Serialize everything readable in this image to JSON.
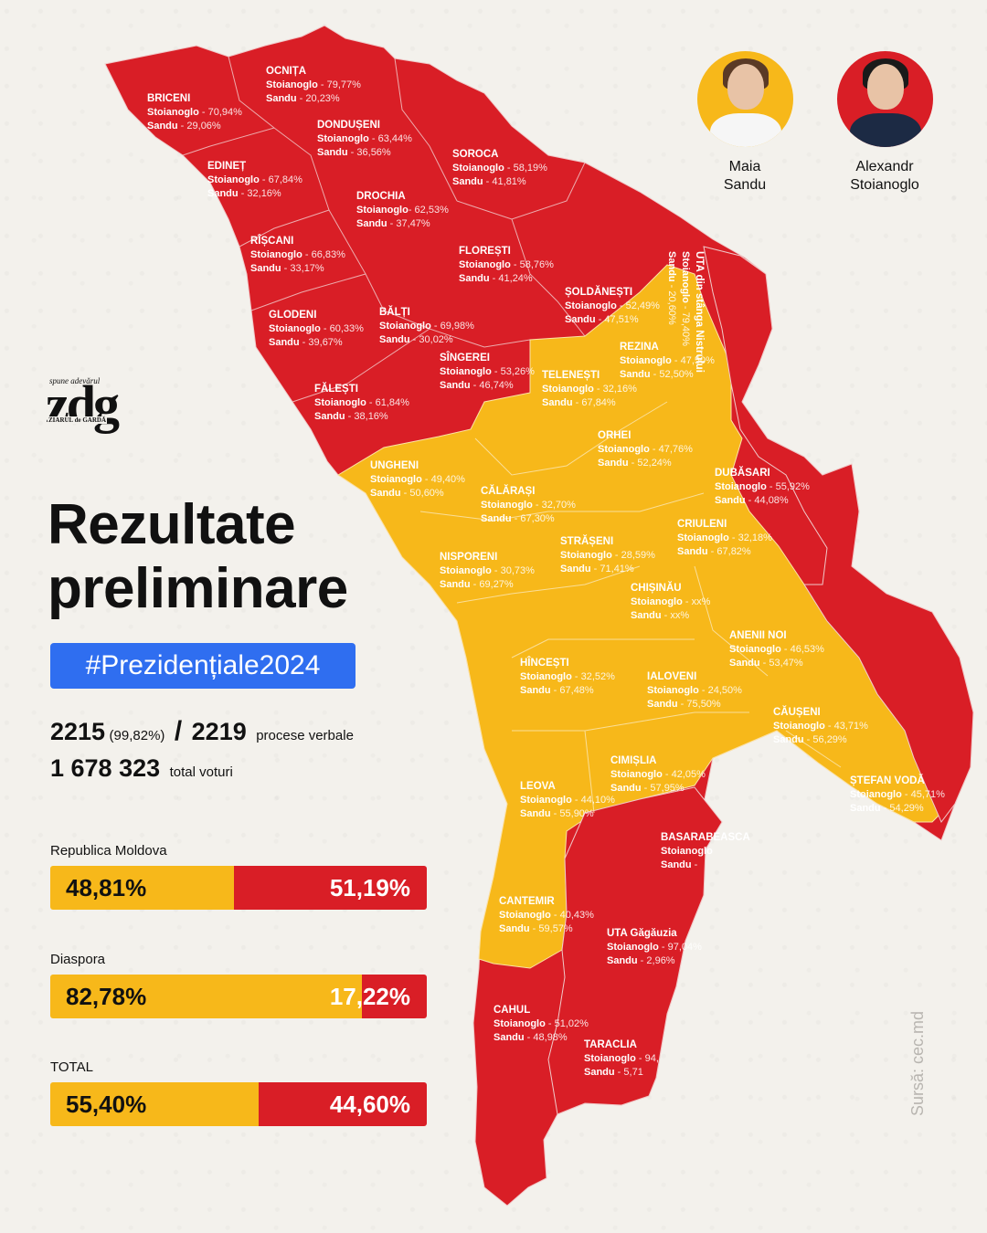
{
  "colors": {
    "sandu": "#f7b81a",
    "stoianoglo": "#d91e26",
    "hashtag_bg": "#2f6ef0"
  },
  "logo": {
    "tagline": "spune adevărul",
    "word": "zdg",
    "sub": "ZIARUL de GARDĂ"
  },
  "candidates": [
    {
      "first": "Maia",
      "last": "Sandu",
      "icon": "portrait-icon"
    },
    {
      "first": "Alexandr",
      "last": "Stoianoglo",
      "icon": "portrait-icon"
    }
  ],
  "title": {
    "line1": "Rezultate",
    "line2": "preliminare"
  },
  "hashtag": "#Prezidențiale2024",
  "stats": {
    "processed": "2215",
    "processed_pct": "(99,82%)",
    "slash": "/",
    "total": "2219",
    "processed_label": "procese verbale",
    "votes": "1 678 323",
    "votes_label": "total voturi"
  },
  "bars": [
    {
      "label": "Republica Moldova",
      "sandu": "48,81%",
      "stoianoglo": "51,19%",
      "sandu_fraction": 0.4881
    },
    {
      "label": "Diaspora",
      "sandu": "82,78%",
      "stoianoglo": "17,22%",
      "sandu_fraction": 0.8278
    },
    {
      "label": "TOTAL",
      "sandu": "55,40%",
      "stoianoglo": "44,60%",
      "sandu_fraction": 0.554
    }
  ],
  "source": "Sursă: cec.md",
  "map": {
    "regions": [
      {
        "name": "BRICENI",
        "s": "Stoianoglo",
        "sp": " - 70,94%",
        "m": "Sandu",
        "mp": " - 29,06%",
        "winner": "stoianoglo"
      },
      {
        "name": "OCNIȚA",
        "s": "Stoianoglo",
        "sp": " - 79,77%",
        "m": "Sandu",
        "mp": " - 20,23%",
        "winner": "stoianoglo"
      },
      {
        "name": "DONDUȘENI",
        "s": "Stoianoglo",
        "sp": " - 63,44%",
        "m": "Sandu",
        "mp": " - 36,56%",
        "winner": "stoianoglo"
      },
      {
        "name": "EDINEȚ",
        "s": "Stoianoglo",
        "sp": " - 67,84%",
        "m": "Sandu",
        "mp": " - 32,16%",
        "winner": "stoianoglo"
      },
      {
        "name": "SOROCA",
        "s": "Stoianoglo",
        "sp": " - 58,19%",
        "m": "Sandu",
        "mp": " - 41,81%",
        "winner": "stoianoglo"
      },
      {
        "name": "DROCHIA",
        "s": "Stoianoglo",
        "sp": "- 62,53%",
        "m": "Sandu",
        "mp": " - 37,47%",
        "winner": "stoianoglo"
      },
      {
        "name": "RÎȘCANI",
        "s": "Stoianoglo",
        "sp": " - 66,83%",
        "m": "Sandu",
        "mp": " - 33,17%",
        "winner": "stoianoglo"
      },
      {
        "name": "FLOREȘTI",
        "s": "Stoianoglo",
        "sp": " - 58,76%",
        "m": "Sandu",
        "mp": " - 41,24%",
        "winner": "stoianoglo"
      },
      {
        "name": "ȘOLDĂNEȘTI",
        "s": "Stoianoglo",
        "sp": " - 52,49%",
        "m": "Sandu",
        "mp": " - 47,51%",
        "winner": "stoianoglo"
      },
      {
        "name": "GLODENI",
        "s": "Stoianoglo",
        "sp": " - 60,33%",
        "m": "Sandu",
        "mp": " - 39,67%",
        "winner": "stoianoglo"
      },
      {
        "name": "BĂLȚI",
        "s": "Stoianoglo",
        "sp": " - 69,98%",
        "m": "Sandu",
        "mp": " - 30,02%",
        "winner": "stoianoglo"
      },
      {
        "name": "SÎNGEREI",
        "s": "Stoianoglo",
        "sp": " - 53,26%",
        "m": "Sandu",
        "mp": " - 46,74%",
        "winner": "stoianoglo"
      },
      {
        "name": "REZINA",
        "s": "Stoianoglo",
        "sp": " - 47,50%",
        "m": "Sandu",
        "mp": " - 52,50%",
        "winner": "sandu"
      },
      {
        "name": "TELENEȘTI",
        "s": "Stoianoglo",
        "sp": " - 32,16%",
        "m": "Sandu",
        "mp": " - 67,84%",
        "winner": "sandu"
      },
      {
        "name": "FĂLEȘTI",
        "s": "Stoianoglo",
        "sp": " - 61,84%",
        "m": "Sandu",
        "mp": " - 38,16%",
        "winner": "stoianoglo"
      },
      {
        "name": "ORHEI",
        "s": "Stoianoglo",
        "sp": " - 47,76%",
        "m": "Sandu",
        "mp": " - 52,24%",
        "winner": "sandu"
      },
      {
        "name": "UNGHENI",
        "s": "Stoianoglo",
        "sp": " - 49,40%",
        "m": "Sandu",
        "mp": " - 50,60%",
        "winner": "sandu"
      },
      {
        "name": "DUBĂSARI",
        "s": "Stoianoglo",
        "sp": " - 55,92%",
        "m": "Sandu",
        "mp": " - 44,08%",
        "winner": "stoianoglo"
      },
      {
        "name": "CĂLĂRAȘI",
        "s": "Stoianoglo",
        "sp": " - 32,70%",
        "m": "Sandu",
        "mp": " - 67,30%",
        "winner": "sandu"
      },
      {
        "name": "CRIULENI",
        "s": "Stoianoglo",
        "sp": " - 32,18%",
        "m": "Sandu",
        "mp": " - 67,82%",
        "winner": "sandu"
      },
      {
        "name": "STRĂȘENI",
        "s": "Stoianoglo",
        "sp": " - 28,59%",
        "m": "Sandu",
        "mp": " - 71,41%",
        "winner": "sandu"
      },
      {
        "name": "NISPORENI",
        "s": "Stoianoglo",
        "sp": " - 30,73%",
        "m": "Sandu",
        "mp": " - 69,27%",
        "winner": "sandu"
      },
      {
        "name": "CHIȘINĂU",
        "s": "Stoianoglo",
        "sp": " - xx%",
        "m": "Sandu",
        "mp": " - xx%",
        "winner": "sandu"
      },
      {
        "name": "ANENII NOI",
        "s": "Stoianoglo",
        "sp": " - 46,53%",
        "m": "Sandu",
        "mp": " - 53,47%",
        "winner": "sandu"
      },
      {
        "name": "HÎNCEȘTI",
        "s": "Stoianoglo",
        "sp": " - 32,52%",
        "m": "Sandu",
        "mp": " - 67,48%",
        "winner": "sandu"
      },
      {
        "name": "IALOVENI",
        "s": "Stoianoglo",
        "sp": " - 24,50%",
        "m": "Sandu",
        "mp": " - 75,50%",
        "winner": "sandu"
      },
      {
        "name": "CĂUȘENI",
        "s": "Stoianoglo",
        "sp": " - 43,71%",
        "m": "Sandu",
        "mp": " - 56,29%",
        "winner": "sandu"
      },
      {
        "name": "CIMIȘLIA",
        "s": "Stoianoglo",
        "sp": " - 42,05%",
        "m": "Sandu",
        "mp": " - 57,95%",
        "winner": "sandu"
      },
      {
        "name": "LEOVA",
        "s": "Stoianoglo",
        "sp": " - 44,10%",
        "m": "Sandu",
        "mp": " - 55,90%",
        "winner": "sandu"
      },
      {
        "name": "ȘTEFAN VODĂ",
        "s": "Stoianoglo",
        "sp": " - 45,71%",
        "m": "Sandu",
        "mp": " - 54,29%",
        "winner": "sandu"
      },
      {
        "name": "BASARABEASCA",
        "s": "Stoianoglo",
        "sp": "",
        "m": "Sandu",
        "mp": " - ",
        "winner": "stoianoglo"
      },
      {
        "name": "CANTEMIR",
        "s": "Stoianoglo",
        "sp": " - 40,43%",
        "m": "Sandu",
        "mp": " - 59,57%",
        "winner": "sandu"
      },
      {
        "name": "UTA Găgăuzia",
        "s": "Stoianoglo",
        "sp": " - 97,04%",
        "m": "Sandu",
        "mp": " - 2,96%",
        "winner": "stoianoglo"
      },
      {
        "name": "CAHUL",
        "s": "Stoianoglo",
        "sp": " - 51,02%",
        "m": "Sandu",
        "mp": " - 48,98%",
        "winner": "stoianoglo"
      },
      {
        "name": "TARACLIA",
        "s": "Stoianoglo",
        "sp": " - 94,",
        "m": "Sandu",
        "mp": " - 5,71",
        "winner": "stoianoglo"
      },
      {
        "name": "UTA din stânga Nistrului",
        "s": "Stoianoglo",
        "sp": " - 79,40%",
        "m": "Sandu",
        "mp": " - 20,60%",
        "winner": "stoianoglo"
      }
    ]
  }
}
